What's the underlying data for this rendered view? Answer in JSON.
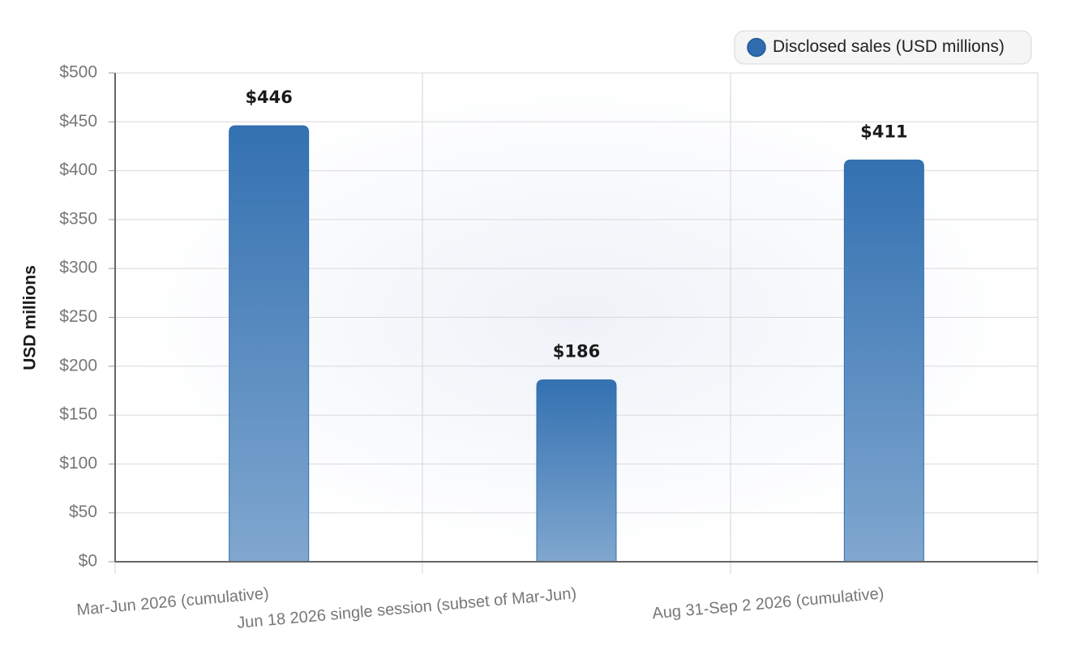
{
  "chart_data": {
    "type": "bar",
    "y_label": "USD millions",
    "categories": [
      "Mar-Jun 2026 (cumulative)",
      "Jun 18 2026 single session (subset of Mar-Jun)",
      "Aug 31-Sep 2 2026 (cumulative)"
    ],
    "series": [
      {
        "name": "Disclosed sales (USD millions)",
        "color": "#2f6db0",
        "values": [
          446,
          186,
          411
        ],
        "value_labels": [
          "$446",
          "$186",
          "$411"
        ]
      }
    ],
    "ylim": [
      0,
      500
    ],
    "yticks": [
      {
        "value": 0,
        "label": "$0"
      },
      {
        "value": 50,
        "label": "$50"
      },
      {
        "value": 100,
        "label": "$100"
      },
      {
        "value": 150,
        "label": "$150"
      },
      {
        "value": 200,
        "label": "$200"
      },
      {
        "value": 250,
        "label": "$250"
      },
      {
        "value": 300,
        "label": "$300"
      },
      {
        "value": 350,
        "label": "$350"
      },
      {
        "value": 400,
        "label": "$400"
      },
      {
        "value": 450,
        "label": "$450"
      },
      {
        "value": 500,
        "label": "$500"
      }
    ],
    "grid": true,
    "legend": "top-right"
  }
}
